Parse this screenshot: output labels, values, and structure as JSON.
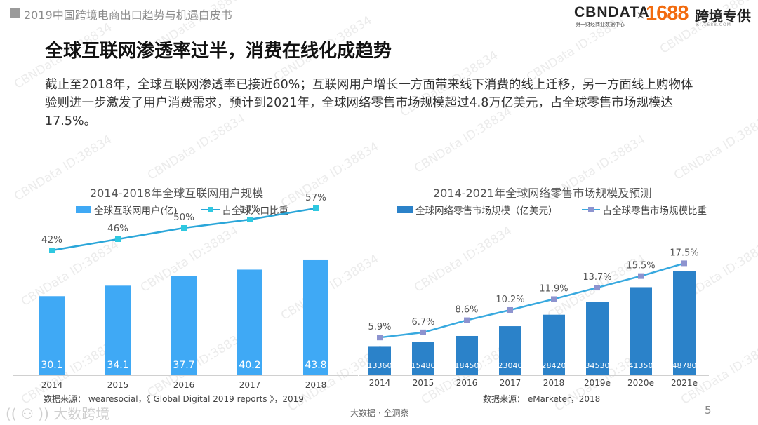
{
  "header": {
    "title": "2019中国跨境电商出口趋势与机遇白皮书"
  },
  "logo": {
    "cbn": "CBNDATA",
    "cbn_sub": "第一财经商业数据中心",
    "times": "×",
    "num": "1688",
    "kj": "跨境专供",
    "kj_sub": "KJ.1688.COM"
  },
  "main_title": "全球互联网渗透率过半，消费在线化成趋势",
  "description": "截止至2018年，全球互联网渗透率已接近60%；互联网用户增长一方面带来线下消费的线上迁移，另一方面线上购物体验则进一步激发了用户消费需求，预计到2021年，全球网络零售市场规模超过4.8万亿美元，占全球零售市场规模达17.5%。",
  "colors": {
    "bar_left": "#3fa9f5",
    "line_left": "#2aa6d9",
    "marker_left": "#2ec8e0",
    "bar_right": "#2b82c9",
    "line_right": "#38a9df",
    "marker_right": "#8d93cf"
  },
  "chart_data": [
    {
      "type": "bar",
      "title": "2014-2018年全球互联网用户规模",
      "categories": [
        "2014",
        "2015",
        "2016",
        "2017",
        "2018"
      ],
      "series": [
        {
          "name": "全球互联网用户(亿)",
          "kind": "bar",
          "values": [
            30.1,
            34.1,
            37.7,
            40.2,
            43.8
          ],
          "labels": [
            "30.1",
            "34.1",
            "37.7",
            "40.2",
            "43.8"
          ]
        },
        {
          "name": "占全球人口比重",
          "kind": "line",
          "values": [
            42,
            46,
            50,
            53,
            57
          ],
          "labels": [
            "42%",
            "46%",
            "50%",
            "53%",
            "57%"
          ]
        }
      ],
      "ylim_bar": [
        0,
        50
      ],
      "ylim_line": [
        0,
        65
      ],
      "grid": false,
      "legend": "top",
      "source": "数据来源： wearesocial，《 Global Digital 2019 reports 》，2019"
    },
    {
      "type": "bar",
      "title": "2014-2021年全球网络零售市场规模及预测",
      "categories": [
        "2014",
        "2015",
        "2016",
        "2017",
        "2018",
        "2019e",
        "2020e",
        "2021e"
      ],
      "series": [
        {
          "name": "全球网络零售市场规模（亿美元）",
          "kind": "bar",
          "values": [
            13360,
            15480,
            18450,
            23040,
            28420,
            34530,
            41350,
            48780
          ],
          "labels": [
            "13360",
            "15480",
            "18450",
            "23040",
            "28420",
            "34530",
            "41350",
            "48780"
          ]
        },
        {
          "name": "占全球零售市场规模比重",
          "kind": "line",
          "values": [
            5.9,
            6.7,
            8.6,
            10.2,
            11.9,
            13.7,
            15.5,
            17.5
          ],
          "labels": [
            "5.9%",
            "6.7%",
            "8.6%",
            "10.2%",
            "11.9%",
            "13.7%",
            "15.5%",
            "17.5%"
          ]
        }
      ],
      "ylim_bar": [
        0,
        53000
      ],
      "ylim_line": [
        0,
        20
      ],
      "grid": false,
      "legend": "top",
      "source": "数据来源： eMarketer，2018"
    }
  ],
  "footer": {
    "center": "大数据 · 全洞察",
    "page": "5",
    "brand": "大数跨境"
  },
  "watermark": "CBNData ID:38834"
}
